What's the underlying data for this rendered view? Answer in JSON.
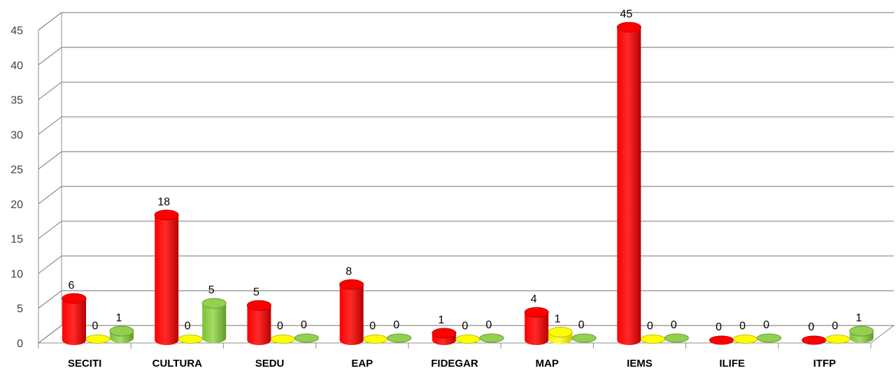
{
  "chart_data": {
    "type": "bar",
    "categories": [
      "SECITI",
      "CULTURA",
      "SEDU",
      "EAP",
      "FIDEGAR",
      "MAP",
      "IEMS",
      "ILIFE",
      "ITFP"
    ],
    "series": [
      {
        "values": [
          6,
          18,
          5,
          8,
          1,
          4,
          45,
          0,
          0
        ],
        "color": "#ff0000"
      },
      {
        "values": [
          0,
          0,
          0,
          0,
          0,
          1,
          0,
          0,
          0
        ],
        "color": "#ffff00"
      },
      {
        "values": [
          1,
          5,
          0,
          0,
          0,
          0,
          0,
          0,
          1
        ],
        "color": "#92d050"
      }
    ],
    "yticks": [
      0,
      5,
      10,
      15,
      20,
      25,
      30,
      35,
      40,
      45
    ],
    "ylim": [
      0,
      45
    ],
    "grid": true,
    "legend": "none",
    "three_d": true
  }
}
